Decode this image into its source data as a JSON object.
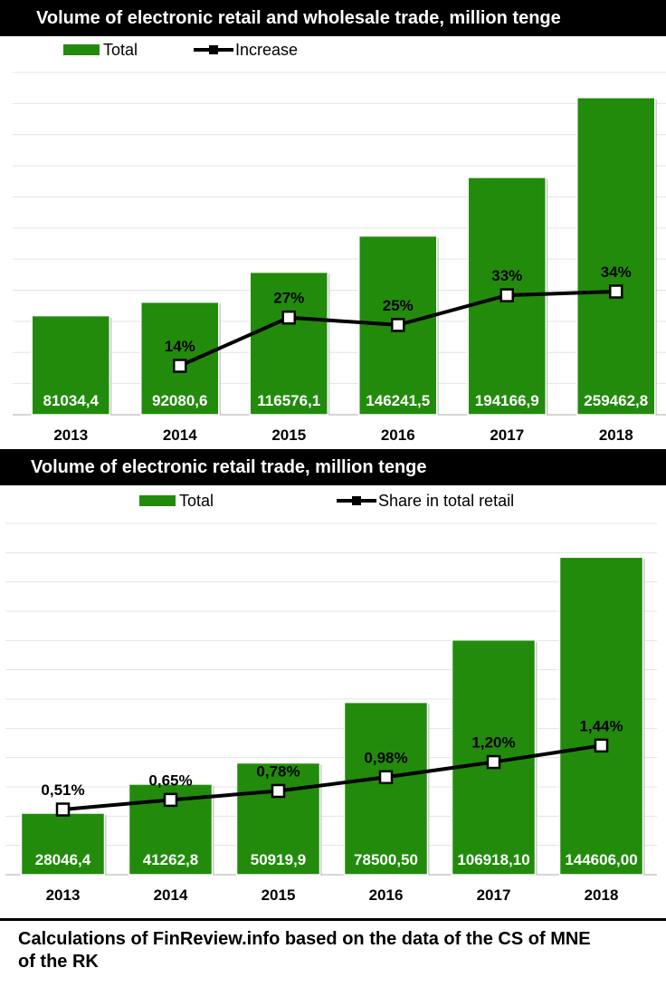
{
  "chart_data": [
    {
      "type": "bar",
      "title": "Volume of electronic retail and wholesale trade, million tenge",
      "categories": [
        "2013",
        "2014",
        "2015",
        "2016",
        "2017",
        "2018"
      ],
      "series": [
        {
          "name": "Total",
          "type": "bar",
          "values": [
            81034.4,
            92080.6,
            116576.1,
            146241.5,
            194166.9,
            259462.8
          ],
          "labels": [
            "81034,4",
            "92080,6",
            "116576,1",
            "146241,5",
            "194166,9",
            "259462,8"
          ],
          "color": "#228b0c"
        },
        {
          "name": "Increase",
          "type": "line",
          "values": [
            null,
            14,
            27,
            25,
            33,
            34
          ],
          "labels": [
            "",
            "14%",
            "27%",
            "25%",
            "33%",
            "34%"
          ],
          "unit": "%",
          "color": "#000000"
        }
      ],
      "ylim": [
        0,
        280000
      ],
      "grid": true,
      "legend": "top"
    },
    {
      "type": "bar",
      "title": "Volume of electronic retail trade, million tenge",
      "categories": [
        "2013",
        "2014",
        "2015",
        "2016",
        "2017",
        "2018"
      ],
      "series": [
        {
          "name": "Total",
          "type": "bar",
          "values": [
            28046.4,
            41262.8,
            50919.9,
            78500.5,
            106918.1,
            144606.0
          ],
          "labels": [
            "28046,4",
            "41262,8",
            "50919,9",
            "78500,50",
            "106918,10",
            "144606,00"
          ],
          "color": "#228b0c"
        },
        {
          "name": "Share in total retail",
          "type": "line",
          "values": [
            0.51,
            0.65,
            0.78,
            0.98,
            1.2,
            1.44
          ],
          "labels": [
            "0,51%",
            "0,65%",
            "0,78%",
            "0,98%",
            "1,20%",
            "1,44%"
          ],
          "unit": "%",
          "color": "#000000"
        }
      ],
      "ylim": [
        0,
        160000
      ],
      "grid": true,
      "legend": "top"
    }
  ],
  "footer": {
    "text": "Calculations of FinReview.info based on the data of the CS of MNE of the RK"
  }
}
